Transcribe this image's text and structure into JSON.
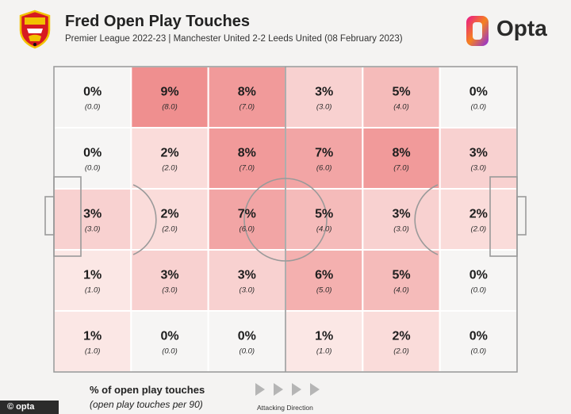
{
  "header": {
    "title": "Fred Open Play Touches",
    "subtitle": "Premier League 2022-23 | Manchester United 2-2 Leeds United (08 February 2023)",
    "brand": "Opta"
  },
  "chart_data": {
    "type": "heatmap",
    "rows": 5,
    "cols": 6,
    "cells": [
      [
        {
          "pct": "0%",
          "val": "(0.0)"
        },
        {
          "pct": "9%",
          "val": "(8.0)"
        },
        {
          "pct": "8%",
          "val": "(7.0)"
        },
        {
          "pct": "3%",
          "val": "(3.0)"
        },
        {
          "pct": "5%",
          "val": "(4.0)"
        },
        {
          "pct": "0%",
          "val": "(0.0)"
        }
      ],
      [
        {
          "pct": "0%",
          "val": "(0.0)"
        },
        {
          "pct": "2%",
          "val": "(2.0)"
        },
        {
          "pct": "8%",
          "val": "(7.0)"
        },
        {
          "pct": "7%",
          "val": "(6.0)"
        },
        {
          "pct": "8%",
          "val": "(7.0)"
        },
        {
          "pct": "3%",
          "val": "(3.0)"
        }
      ],
      [
        {
          "pct": "3%",
          "val": "(3.0)"
        },
        {
          "pct": "2%",
          "val": "(2.0)"
        },
        {
          "pct": "7%",
          "val": "(6.0)"
        },
        {
          "pct": "5%",
          "val": "(4.0)"
        },
        {
          "pct": "3%",
          "val": "(3.0)"
        },
        {
          "pct": "2%",
          "val": "(2.0)"
        }
      ],
      [
        {
          "pct": "1%",
          "val": "(1.0)"
        },
        {
          "pct": "3%",
          "val": "(3.0)"
        },
        {
          "pct": "3%",
          "val": "(3.0)"
        },
        {
          "pct": "6%",
          "val": "(5.0)"
        },
        {
          "pct": "5%",
          "val": "(4.0)"
        },
        {
          "pct": "0%",
          "val": "(0.0)"
        }
      ],
      [
        {
          "pct": "1%",
          "val": "(1.0)"
        },
        {
          "pct": "0%",
          "val": "(0.0)"
        },
        {
          "pct": "0%",
          "val": "(0.0)"
        },
        {
          "pct": "1%",
          "val": "(1.0)"
        },
        {
          "pct": "2%",
          "val": "(2.0)"
        },
        {
          "pct": "0%",
          "val": "(0.0)"
        }
      ]
    ],
    "percent_values": [
      [
        0,
        9,
        8,
        3,
        5,
        0
      ],
      [
        0,
        2,
        8,
        7,
        8,
        3
      ],
      [
        3,
        2,
        7,
        5,
        3,
        2
      ],
      [
        1,
        3,
        3,
        6,
        5,
        0
      ],
      [
        1,
        0,
        0,
        1,
        2,
        0
      ]
    ],
    "colors": {
      "high": "#ef8f8f",
      "low": "#fdf2f0",
      "zero": "#f6f5f4",
      "lines": "#9a9a9a",
      "background": "#f4f3f2"
    }
  },
  "legend": {
    "title": "% of open play touches",
    "subtitle": "(open play touches per 90)"
  },
  "direction_label": "Attacking Direction",
  "footer": {
    "text": "© opta"
  },
  "icons": {
    "crest": "manchester-united-crest-icon",
    "opta": "opta-logo-icon",
    "arrow": "play-arrow-icon"
  }
}
